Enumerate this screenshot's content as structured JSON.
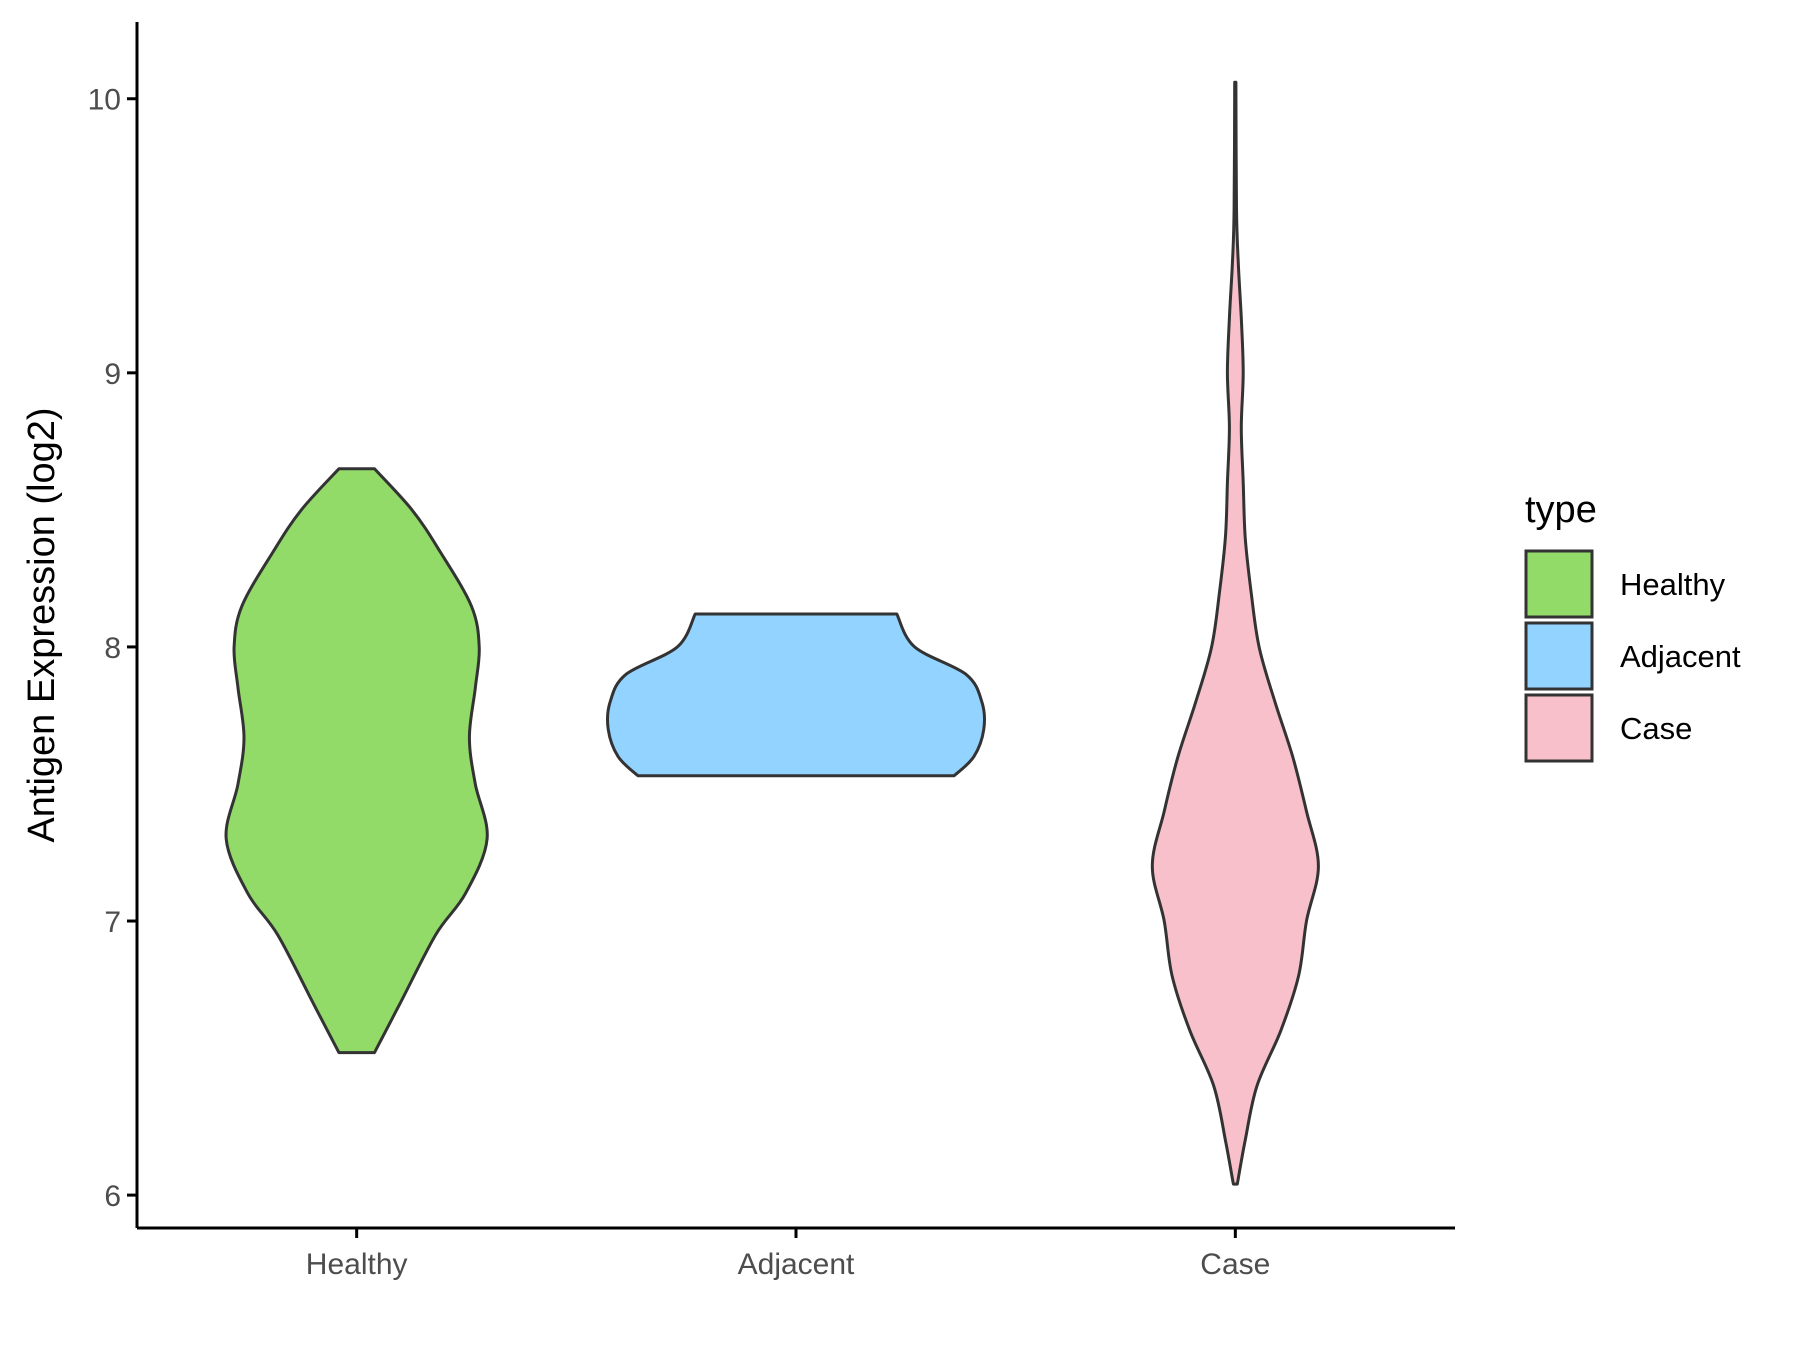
{
  "chart_data": {
    "type": "violin",
    "ylabel": "Antigen Expression (log2)",
    "xlabel": "",
    "categories": [
      "Healthy",
      "Adjacent",
      "Case"
    ],
    "ylim": [
      5.88,
      10.28
    ],
    "yticks": [
      6,
      7,
      8,
      9,
      10
    ],
    "ytick_labels": [
      "6",
      "7",
      "8",
      "9",
      "10"
    ],
    "grid": false,
    "legend": {
      "title": "type",
      "position": "right",
      "entries": [
        {
          "label": "Healthy",
          "color": "#93db69"
        },
        {
          "label": "Adjacent",
          "color": "#93d3ff"
        },
        {
          "label": "Case",
          "color": "#f7c0cb"
        }
      ]
    },
    "series": [
      {
        "category": "Healthy",
        "color": "#93db69",
        "min": 6.52,
        "max": 8.65,
        "density": [
          [
            6.52,
            0.09
          ],
          [
            6.7,
            0.22
          ],
          [
            6.95,
            0.4
          ],
          [
            7.1,
            0.55
          ],
          [
            7.3,
            0.66
          ],
          [
            7.5,
            0.6
          ],
          [
            7.67,
            0.57
          ],
          [
            7.85,
            0.6
          ],
          [
            8.0,
            0.62
          ],
          [
            8.15,
            0.58
          ],
          [
            8.35,
            0.42
          ],
          [
            8.5,
            0.28
          ],
          [
            8.65,
            0.09
          ]
        ]
      },
      {
        "category": "Adjacent",
        "color": "#93d3ff",
        "min": 7.53,
        "max": 8.12,
        "density": [
          [
            7.53,
            0.8
          ],
          [
            7.6,
            0.9
          ],
          [
            7.7,
            0.95
          ],
          [
            7.8,
            0.94
          ],
          [
            7.9,
            0.86
          ],
          [
            8.0,
            0.6
          ],
          [
            8.12,
            0.51
          ]
        ]
      },
      {
        "category": "Case",
        "color": "#f7c0cb",
        "min": 6.04,
        "max": 10.06,
        "density": [
          [
            6.04,
            0.01
          ],
          [
            6.2,
            0.05
          ],
          [
            6.4,
            0.11
          ],
          [
            6.6,
            0.23
          ],
          [
            6.8,
            0.32
          ],
          [
            7.0,
            0.36
          ],
          [
            7.2,
            0.42
          ],
          [
            7.4,
            0.36
          ],
          [
            7.6,
            0.29
          ],
          [
            7.8,
            0.2
          ],
          [
            8.0,
            0.12
          ],
          [
            8.2,
            0.08
          ],
          [
            8.4,
            0.05
          ],
          [
            8.6,
            0.04
          ],
          [
            8.8,
            0.03
          ],
          [
            9.0,
            0.04
          ],
          [
            9.2,
            0.03
          ],
          [
            9.4,
            0.015
          ],
          [
            9.6,
            0.006
          ],
          [
            10.06,
            0.003
          ]
        ]
      }
    ]
  }
}
